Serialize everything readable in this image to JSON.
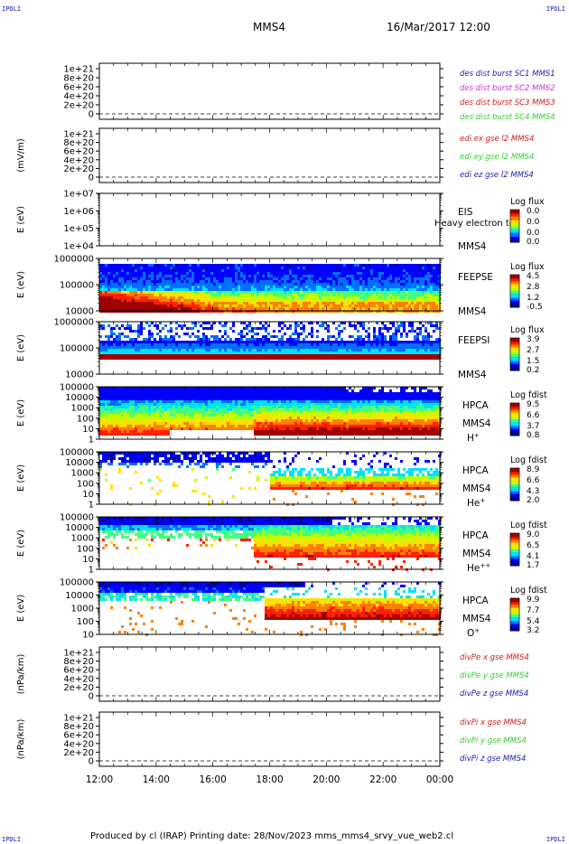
{
  "corner_labels": {
    "tl": "IPDLI",
    "tr": "IPDLI",
    "bl": "IPDLI",
    "br": "IPDLI"
  },
  "header": {
    "spacecraft": "MMS4",
    "datetime": "16/Mar/2017 12:00"
  },
  "footer": {
    "text": "Produced by cl (IRAP)   Printing date: 28/Nov/2023   mms_mms4_srvy_vue_web2.cl"
  },
  "colors": {
    "blue": "#1a1ab0",
    "magenta": "#cc33cc",
    "red": "#d11a1a",
    "green": "#33cc33",
    "colormap": [
      "#000090",
      "#0000ff",
      "#0070ff",
      "#00e0ff",
      "#40ff80",
      "#c0ff00",
      "#ffe000",
      "#ff8000",
      "#ff2000",
      "#a00000"
    ]
  },
  "chart_data": {
    "type": "multi-panel time series / spectrogram",
    "x_tick_labels": [
      "12:00",
      "14:00",
      "16:00",
      "18:00",
      "20:00",
      "22:00",
      "00:00"
    ],
    "x_range": [
      "12:00",
      "00:00"
    ],
    "panels": [
      {
        "id": "p1",
        "type": "line",
        "ylabel": "",
        "yticks": [
          "1e+21",
          "8e+20",
          "6e+20",
          "4e+20",
          "2e+20",
          "0"
        ],
        "legend": [
          {
            "text": "des dist burst SC1 MMS1",
            "color": "#1a1ab0"
          },
          {
            "text": "des dist burst SC2 MMS2",
            "color": "#cc33cc"
          },
          {
            "text": "des dist burst SC3 MMS3",
            "color": "#d11a1a"
          },
          {
            "text": "des dist burst SC4 MMS4",
            "color": "#33cc33"
          }
        ]
      },
      {
        "id": "p2",
        "type": "line",
        "ylabel": "(mV/m)",
        "yticks": [
          "1e+21",
          "8e+20",
          "6e+20",
          "4e+20",
          "2e+20",
          "0"
        ],
        "legend": [
          {
            "text": "edi ex gse l2 MMS4",
            "color": "#d11a1a"
          },
          {
            "text": "edi ey gse l2 MMS4",
            "color": "#33cc33"
          },
          {
            "text": "edi ez gse l2 MMS4",
            "color": "#1a1ab0"
          }
        ]
      },
      {
        "id": "p3",
        "type": "heatmap",
        "ylabel": "E (eV)",
        "yticks": [
          "1e+07",
          "1e+06",
          "1e+05",
          "1e+04"
        ],
        "inst": [
          "EIS",
          "",
          "MMS4"
        ],
        "overlay": "Heavy electron to",
        "cbar_title": "Log flux",
        "cbar_ticks": [
          "0.0",
          "0.0",
          "0.0",
          "0.0"
        ],
        "pattern": "none"
      },
      {
        "id": "p4",
        "type": "heatmap",
        "ylabel": "E (eV)",
        "yticks": [
          "1000000",
          "100000",
          "10000"
        ],
        "inst": [
          "FEEPSE",
          "",
          "MMS4"
        ],
        "cbar_title": "Log flux",
        "cbar_ticks": [
          "4.5",
          "2.8",
          "1.2",
          "-0.5"
        ],
        "pattern": "feepse"
      },
      {
        "id": "p5",
        "type": "heatmap",
        "ylabel": "E (eV)",
        "yticks": [
          "1000000",
          "100000",
          "10000"
        ],
        "inst": [
          "FEEPSI",
          "",
          "MMS4"
        ],
        "cbar_title": "Log flux",
        "cbar_ticks": [
          "3.9",
          "2.7",
          "1.5",
          "0.2"
        ],
        "pattern": "feepsi"
      },
      {
        "id": "p6",
        "type": "heatmap",
        "ylabel": "E (eV)",
        "yticks": [
          "100000",
          "10000",
          "1000",
          "100",
          "10",
          "1"
        ],
        "inst": [
          "HPCA",
          "MMS4",
          "H+"
        ],
        "cbar_title": "Log fdist",
        "cbar_ticks": [
          "9.5",
          "6.6",
          "3.7",
          "0.8"
        ],
        "pattern": "hplus"
      },
      {
        "id": "p7",
        "type": "heatmap",
        "ylabel": "E (eV)",
        "yticks": [
          "100000",
          "10000",
          "1000",
          "100",
          "10",
          "1"
        ],
        "inst": [
          "HPCA",
          "MMS4",
          "He+"
        ],
        "cbar_title": "Log fdist",
        "cbar_ticks": [
          "8.9",
          "6.6",
          "4.3",
          "2.0"
        ],
        "pattern": "heplus"
      },
      {
        "id": "p8",
        "type": "heatmap",
        "ylabel": "E (eV)",
        "yticks": [
          "100000",
          "10000",
          "1000",
          "100",
          "10",
          "1"
        ],
        "inst": [
          "HPCA",
          "MMS4",
          "He++"
        ],
        "cbar_title": "Log fdist",
        "cbar_ticks": [
          "9.0",
          "6.5",
          "4.1",
          "1.7"
        ],
        "pattern": "hepp"
      },
      {
        "id": "p9",
        "type": "heatmap",
        "ylabel": "E (eV)",
        "yticks": [
          "100000",
          "10000",
          "1000",
          "100",
          "10"
        ],
        "inst": [
          "HPCA",
          "MMS4",
          "O+"
        ],
        "cbar_title": "Log fdist",
        "cbar_ticks": [
          "9.9",
          "7.7",
          "5.4",
          "3.2"
        ],
        "pattern": "oplus"
      },
      {
        "id": "p10",
        "type": "line",
        "ylabel": "(nPa/km)",
        "yticks": [
          "1e+21",
          "8e+20",
          "6e+20",
          "4e+20",
          "2e+20",
          "0"
        ],
        "legend": [
          {
            "text": "divPe x gse MMS4",
            "color": "#d11a1a"
          },
          {
            "text": "divPe y gse MMS4",
            "color": "#33cc33"
          },
          {
            "text": "divPe z gse MMS4",
            "color": "#1a1ab0"
          }
        ]
      },
      {
        "id": "p11",
        "type": "line",
        "ylabel": "(nPa/km)",
        "yticks": [
          "1e+21",
          "8e+20",
          "6e+20",
          "4e+20",
          "2e+20",
          "0"
        ],
        "legend": [
          {
            "text": "divPi x gse MMS4",
            "color": "#d11a1a"
          },
          {
            "text": "divPi y gse MMS4",
            "color": "#33cc33"
          },
          {
            "text": "divPi z gse MMS4",
            "color": "#1a1ab0"
          }
        ]
      }
    ]
  }
}
